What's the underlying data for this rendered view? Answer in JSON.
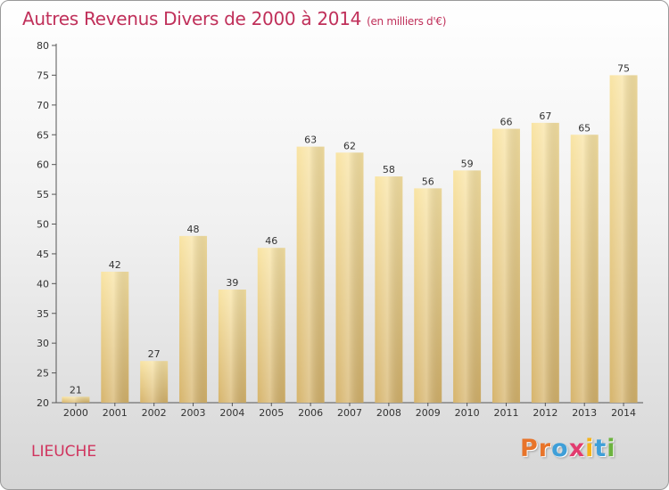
{
  "title": "Autres Revenus Divers de 2000 à 2014",
  "title_unit": "(en milliers d'€)",
  "commune": "LIEUCHE",
  "logo": {
    "letters": [
      "P",
      "r",
      "o",
      "x",
      "i",
      "t",
      "i"
    ],
    "colors": [
      "#e8742a",
      "#e8742a",
      "#3f9fd8",
      "#e23b6f",
      "#f5b31b",
      "#3f9fd8",
      "#6cb33f"
    ]
  },
  "colors": {
    "bar_light": "#f8e2a0",
    "bar_dark": "#d9b871",
    "title": "#c0305a"
  },
  "chart_data": {
    "type": "bar",
    "categories": [
      "2000",
      "2001",
      "2002",
      "2003",
      "2004",
      "2005",
      "2006",
      "2007",
      "2008",
      "2009",
      "2010",
      "2011",
      "2012",
      "2013",
      "2014"
    ],
    "values": [
      21,
      42,
      27,
      48,
      39,
      46,
      63,
      62,
      58,
      56,
      59,
      66,
      67,
      65,
      75
    ],
    "title": "Autres Revenus Divers de 2000 à 2014",
    "ylim": [
      20,
      80
    ],
    "yticks": [
      20,
      25,
      30,
      35,
      40,
      45,
      50,
      55,
      60,
      65,
      70,
      75,
      80
    ],
    "grid": false,
    "legend": "none"
  }
}
